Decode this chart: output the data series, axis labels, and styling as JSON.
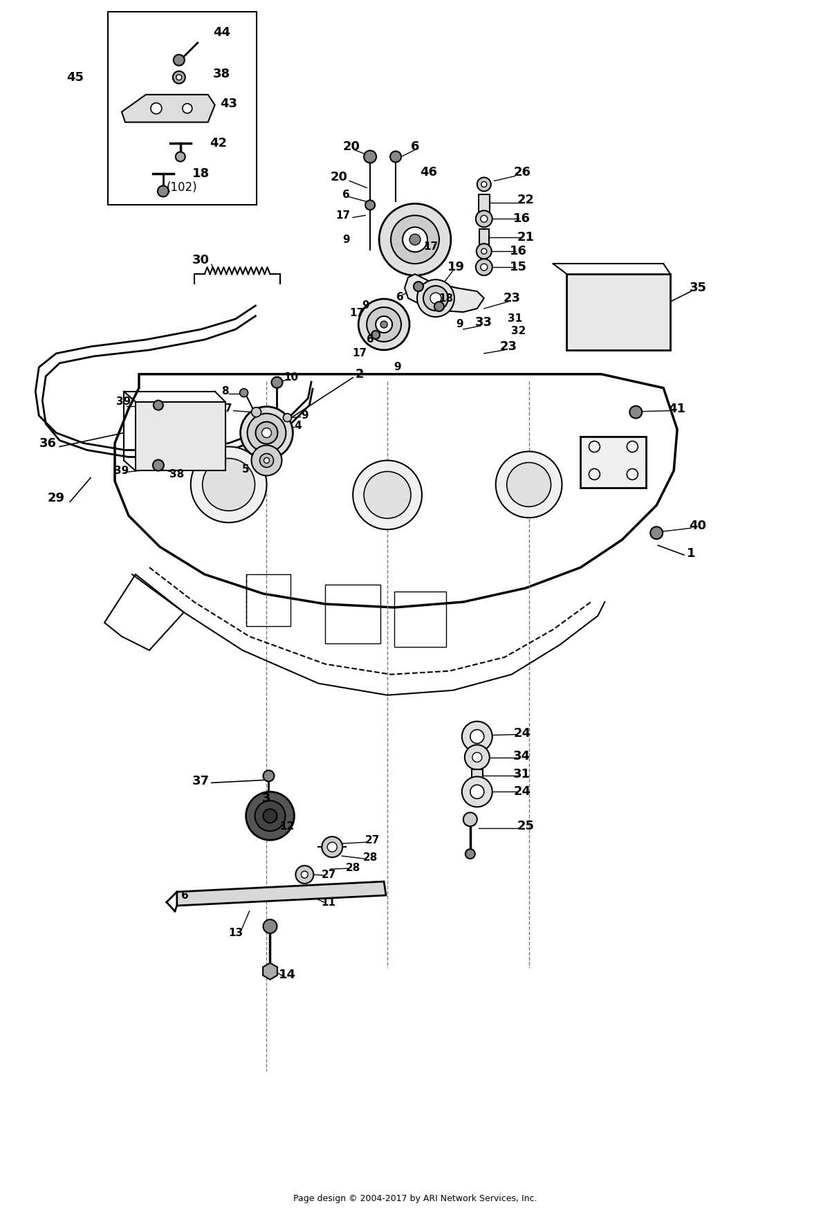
{
  "footer": "Page design © 2004-2017 by ARI Network Services, Inc.",
  "bg_color": "#ffffff",
  "fig_width": 12.0,
  "fig_height": 17.59,
  "dpi": 100
}
